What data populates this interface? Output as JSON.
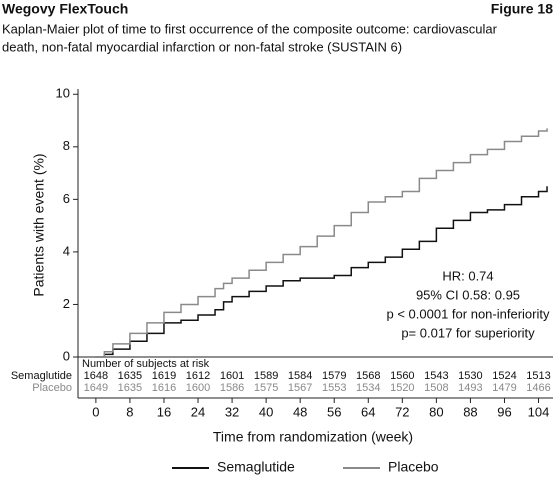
{
  "chart_data": {
    "type": "line",
    "header": "Wegovy FlexTouch",
    "figure_label": "Figure 18",
    "title": "Kaplan-Maier plot of time to first occurrence of the composite outcome: cardiovascular",
    "title_line2": "death, non-fatal myocardial infarction or non-fatal stroke (SUSTAIN 6)",
    "x_label": "Time from randomization (week)",
    "y_label": "Patients with event (%)",
    "xlim": [
      -4.2,
      107.4
    ],
    "xticks": [
      0,
      8,
      16,
      24,
      32,
      40,
      48,
      56,
      64,
      72,
      80,
      88,
      96,
      104
    ],
    "ylim": [
      0,
      10.2
    ],
    "yticks": [
      0,
      2,
      4,
      6,
      8,
      10
    ],
    "grid": false,
    "x": [
      0,
      2,
      4,
      8,
      12,
      16,
      20,
      24,
      28,
      30,
      32,
      36,
      40,
      44,
      48,
      52,
      56,
      60,
      64,
      68,
      72,
      76,
      80,
      84,
      88,
      92,
      96,
      100,
      104,
      106
    ],
    "series": [
      {
        "name": "Semaglutide",
        "color": "#111111",
        "values": [
          0,
          0.1,
          0.3,
          0.6,
          0.9,
          1.3,
          1.4,
          1.6,
          1.8,
          2.1,
          2.3,
          2.5,
          2.7,
          2.9,
          3.0,
          3.0,
          3.1,
          3.4,
          3.6,
          3.8,
          4.1,
          4.4,
          4.9,
          5.2,
          5.5,
          5.6,
          5.8,
          6.1,
          6.3,
          6.5
        ]
      },
      {
        "name": "Placebo",
        "color": "#8a8a8a",
        "values": [
          0,
          0.2,
          0.5,
          0.9,
          1.3,
          1.7,
          2.0,
          2.3,
          2.6,
          2.8,
          3.0,
          3.3,
          3.6,
          3.9,
          4.2,
          4.6,
          5.0,
          5.5,
          5.9,
          6.1,
          6.3,
          6.8,
          7.1,
          7.4,
          7.7,
          7.9,
          8.2,
          8.4,
          8.6,
          8.7
        ]
      }
    ],
    "annotations": [
      "HR: 0.74",
      "95% CI 0.58: 0.95",
      "p < 0.0001 for non-inferiority",
      "p= 0.017 for superiority"
    ],
    "risk_table": {
      "title": "Number of subjects at risk",
      "rows": [
        {
          "name": "Semaglutide",
          "color": "#111111",
          "values": [
            1648,
            1635,
            1619,
            1612,
            1601,
            1589,
            1584,
            1579,
            1568,
            1560,
            1543,
            1530,
            1524,
            1513
          ]
        },
        {
          "name": "Placebo",
          "color": "#8a8a8a",
          "values": [
            1649,
            1635,
            1616,
            1600,
            1586,
            1575,
            1567,
            1553,
            1534,
            1520,
            1508,
            1493,
            1479,
            1466
          ]
        }
      ]
    }
  }
}
